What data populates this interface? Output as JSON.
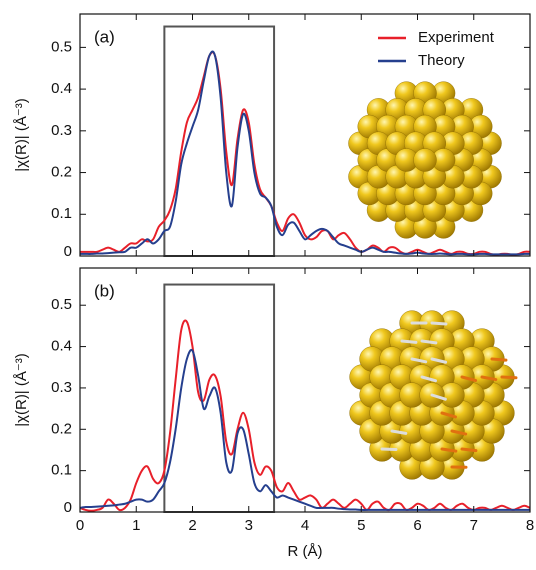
{
  "chart_data": [
    {
      "type": "line",
      "panel_label": "(a)",
      "ylabel": "|χ(R)| (Å⁻³)",
      "legend": "upper right",
      "xlim": [
        0,
        8
      ],
      "xticks": [
        0,
        1,
        2,
        3,
        4,
        5,
        6,
        7,
        8
      ],
      "ylim": [
        0,
        0.58
      ],
      "yticks": [
        0,
        0.1,
        0.2,
        0.3,
        0.4,
        0.5
      ],
      "highlight_range": [
        1.5,
        3.45
      ],
      "highlight_top": 0.55,
      "x": [
        0,
        0.1,
        0.2,
        0.3,
        0.4,
        0.5,
        0.6,
        0.7,
        0.8,
        0.9,
        1,
        1.1,
        1.2,
        1.3,
        1.4,
        1.5,
        1.6,
        1.7,
        1.8,
        1.9,
        2,
        2.1,
        2.2,
        2.3,
        2.4,
        2.5,
        2.6,
        2.7,
        2.8,
        2.9,
        3,
        3.1,
        3.2,
        3.3,
        3.4,
        3.5,
        3.6,
        3.7,
        3.8,
        3.9,
        4,
        4.1,
        4.2,
        4.3,
        4.4,
        4.5,
        4.6,
        4.7,
        4.8,
        4.9,
        5,
        5.1,
        5.2,
        5.3,
        5.4,
        5.5,
        5.6,
        5.7,
        5.8,
        5.9,
        6,
        6.1,
        6.2,
        6.3,
        6.4,
        6.5,
        6.6,
        6.7,
        6.8,
        6.9,
        7,
        7.1,
        7.2,
        7.3,
        7.4,
        7.5,
        7.6,
        7.7,
        7.8,
        7.9,
        8
      ],
      "series": [
        {
          "name": "Experiment",
          "color": "#e8202a",
          "values": [
            0.01,
            0.01,
            0.01,
            0.01,
            0.015,
            0.02,
            0.015,
            0.01,
            0.02,
            0.03,
            0.03,
            0.04,
            0.035,
            0.04,
            0.07,
            0.085,
            0.11,
            0.16,
            0.25,
            0.32,
            0.35,
            0.38,
            0.43,
            0.48,
            0.48,
            0.4,
            0.25,
            0.17,
            0.28,
            0.35,
            0.32,
            0.22,
            0.16,
            0.14,
            0.12,
            0.08,
            0.06,
            0.09,
            0.1,
            0.08,
            0.05,
            0.04,
            0.045,
            0.06,
            0.06,
            0.04,
            0.05,
            0.055,
            0.04,
            0.02,
            0.01,
            0.015,
            0.025,
            0.02,
            0.01,
            0.02,
            0.02,
            0.01,
            0.005,
            0.01,
            0.015,
            0.01,
            0.005,
            0.01,
            0.015,
            0.01,
            0.005,
            0.01,
            0.01,
            0.005,
            0.005,
            0.01,
            0.01,
            0.005,
            0.003,
            0.005,
            0.005,
            0.003,
            0.005,
            0.01,
            0.01
          ]
        },
        {
          "name": "Theory",
          "color": "#253f8e",
          "values": [
            0.005,
            0.005,
            0.005,
            0.006,
            0.006,
            0.007,
            0.008,
            0.009,
            0.01,
            0.02,
            0.02,
            0.03,
            0.04,
            0.03,
            0.04,
            0.06,
            0.07,
            0.13,
            0.22,
            0.27,
            0.31,
            0.35,
            0.42,
            0.48,
            0.48,
            0.38,
            0.2,
            0.12,
            0.26,
            0.34,
            0.3,
            0.2,
            0.15,
            0.14,
            0.12,
            0.07,
            0.05,
            0.075,
            0.08,
            0.06,
            0.04,
            0.05,
            0.06,
            0.065,
            0.06,
            0.045,
            0.03,
            0.025,
            0.02,
            0.015,
            0.01,
            0.015,
            0.02,
            0.015,
            0.01,
            0.01,
            0.008,
            0.006,
            0.005,
            0.006,
            0.008,
            0.006,
            0.005,
            0.005,
            0.006,
            0.005,
            0.004,
            0.005,
            0.005,
            0.004,
            0.004,
            0.005,
            0.005,
            0.004,
            0.004,
            0.004,
            0.004,
            0.004,
            0.004,
            0.005,
            0.005
          ]
        }
      ]
    },
    {
      "type": "line",
      "panel_label": "(b)",
      "ylabel": "|χ(R)| (Å⁻³)",
      "xlabel": "R (Å)",
      "xlim": [
        0,
        8
      ],
      "xticks": [
        0,
        1,
        2,
        3,
        4,
        5,
        6,
        7,
        8
      ],
      "ylim": [
        0,
        0.59
      ],
      "yticks": [
        0,
        0.1,
        0.2,
        0.3,
        0.4,
        0.5
      ],
      "highlight_range": [
        1.5,
        3.45
      ],
      "highlight_top": 0.55,
      "x": [
        0,
        0.1,
        0.2,
        0.3,
        0.4,
        0.5,
        0.6,
        0.7,
        0.8,
        0.9,
        1,
        1.1,
        1.2,
        1.3,
        1.4,
        1.5,
        1.6,
        1.7,
        1.8,
        1.9,
        2,
        2.1,
        2.2,
        2.3,
        2.4,
        2.5,
        2.6,
        2.7,
        2.8,
        2.9,
        3,
        3.1,
        3.2,
        3.3,
        3.4,
        3.5,
        3.6,
        3.7,
        3.8,
        3.9,
        4,
        4.1,
        4.2,
        4.3,
        4.4,
        4.5,
        4.6,
        4.7,
        4.8,
        4.9,
        5,
        5.1,
        5.2,
        5.3,
        5.4,
        5.5,
        5.6,
        5.7,
        5.8,
        5.9,
        6,
        6.1,
        6.2,
        6.3,
        6.4,
        6.5,
        6.6,
        6.7,
        6.8,
        6.9,
        7,
        7.1,
        7.2,
        7.3,
        7.4,
        7.5,
        7.6,
        7.7,
        7.8,
        7.9,
        8
      ],
      "series": [
        {
          "color": "#e8202a",
          "values": [
            0.01,
            0.005,
            0.003,
            0.005,
            0.01,
            0.03,
            0.02,
            0.005,
            0.01,
            0.03,
            0.07,
            0.1,
            0.11,
            0.08,
            0.07,
            0.1,
            0.19,
            0.32,
            0.44,
            0.46,
            0.4,
            0.29,
            0.27,
            0.32,
            0.33,
            0.28,
            0.17,
            0.14,
            0.2,
            0.24,
            0.2,
            0.12,
            0.09,
            0.11,
            0.1,
            0.06,
            0.05,
            0.07,
            0.05,
            0.03,
            0.035,
            0.04,
            0.03,
            0.01,
            0.02,
            0.03,
            0.02,
            0.01,
            0.02,
            0.03,
            0.02,
            0.005,
            0.02,
            0.025,
            0.01,
            0.005,
            0.02,
            0.02,
            0.005,
            0.01,
            0.02,
            0.015,
            0.005,
            0.01,
            0.02,
            0.01,
            0.005,
            0.015,
            0.02,
            0.01,
            0.005,
            0.01,
            0.01,
            0.005,
            0.01,
            0.015,
            0.01,
            0.005,
            0.01,
            0.015,
            0.01
          ]
        },
        {
          "color": "#253f8e",
          "values": [
            0.01,
            0.012,
            0.012,
            0.013,
            0.014,
            0.015,
            0.016,
            0.018,
            0.02,
            0.025,
            0.03,
            0.03,
            0.025,
            0.03,
            0.05,
            0.07,
            0.12,
            0.2,
            0.3,
            0.37,
            0.39,
            0.33,
            0.25,
            0.28,
            0.3,
            0.24,
            0.12,
            0.1,
            0.19,
            0.2,
            0.14,
            0.07,
            0.05,
            0.065,
            0.05,
            0.035,
            0.04,
            0.035,
            0.03,
            0.025,
            0.02,
            0.015,
            0.01,
            0.01,
            0.01,
            0.01,
            0.008,
            0.007,
            0.006,
            0.006,
            0.005,
            0.005,
            0.005,
            0.005,
            0.005,
            0.005,
            0.005,
            0.005,
            0.005,
            0.005,
            0.005,
            0.005,
            0.005,
            0.005,
            0.005,
            0.005,
            0.005,
            0.005,
            0.005,
            0.005,
            0.005,
            0.005,
            0.005,
            0.005,
            0.005,
            0.005,
            0.005,
            0.005,
            0.005,
            0.005,
            0.005
          ]
        }
      ]
    }
  ]
}
